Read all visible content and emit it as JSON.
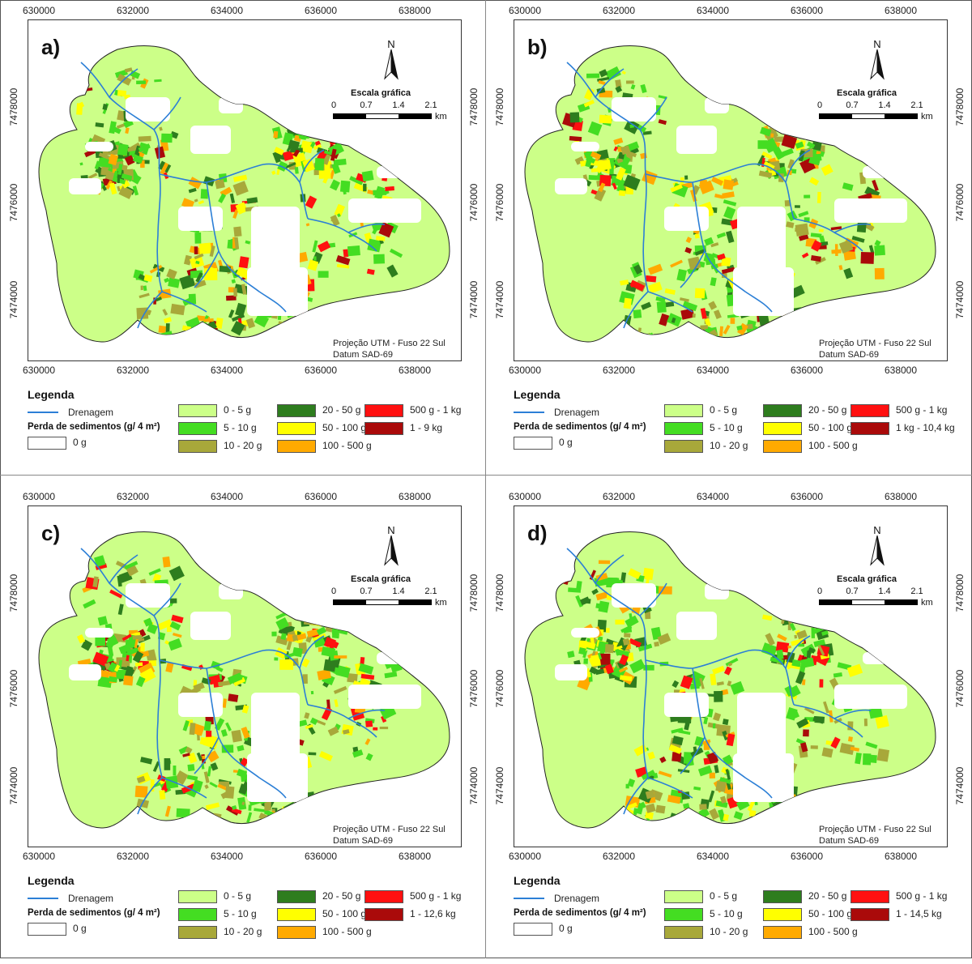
{
  "x_ticks": [
    "630000",
    "632000",
    "634000",
    "636000",
    "638000"
  ],
  "y_ticks": [
    "7478000",
    "7476000",
    "7474000"
  ],
  "north_label": "N",
  "scale": {
    "title": "Escala gráfica",
    "ticks": [
      "0",
      "0.7",
      "1.4",
      "2.1"
    ],
    "unit": "km"
  },
  "projection": [
    "Projeção UTM - Fuso 22 Sul",
    "Datum SAD-69"
  ],
  "legend": {
    "title": "Legenda",
    "drainage": "Drenagem",
    "loss_label": "Perda de sedimentos (g/ 4 m²)",
    "zero_label": "0 g"
  },
  "colors": {
    "c0_5": "#ccff88",
    "c5_10": "#44dd22",
    "c10_20": "#a8a83a",
    "c20_50": "#2e7d1e",
    "c50_100": "#ffff00",
    "c100_500": "#ffaa00",
    "c500_1k": "#ff1010",
    "cmax": "#aa0a0a",
    "drainage": "#2c7fd6"
  },
  "panels": [
    {
      "label": "a)",
      "classes": [
        "0 - 5 g",
        "5 - 10 g",
        "10 - 20 g",
        "20 - 50 g",
        "50 - 100 g",
        "100 - 500 g",
        "500 g - 1 kg",
        "1 - 9 kg"
      ]
    },
    {
      "label": "b)",
      "classes": [
        "0 - 5 g",
        "5 - 10 g",
        "10 - 20 g",
        "20 - 50 g",
        "50 - 100 g",
        "100 - 500 g",
        "500 g - 1 kg",
        "1 kg - 10,4 kg"
      ]
    },
    {
      "label": "c)",
      "classes": [
        "0 - 5 g",
        "5 - 10 g",
        "10 - 20 g",
        "20 - 50 g",
        "50 - 100 g",
        "100 - 500 g",
        "500 g - 1 kg",
        "1 - 12,6 kg"
      ]
    },
    {
      "label": "d)",
      "classes": [
        "0 - 5 g",
        "5 - 10 g",
        "10 - 20 g",
        "20 - 50 g",
        "50 - 100 g",
        "100 - 500 g",
        "500 g - 1 kg",
        "1 - 14,5 kg"
      ]
    }
  ]
}
